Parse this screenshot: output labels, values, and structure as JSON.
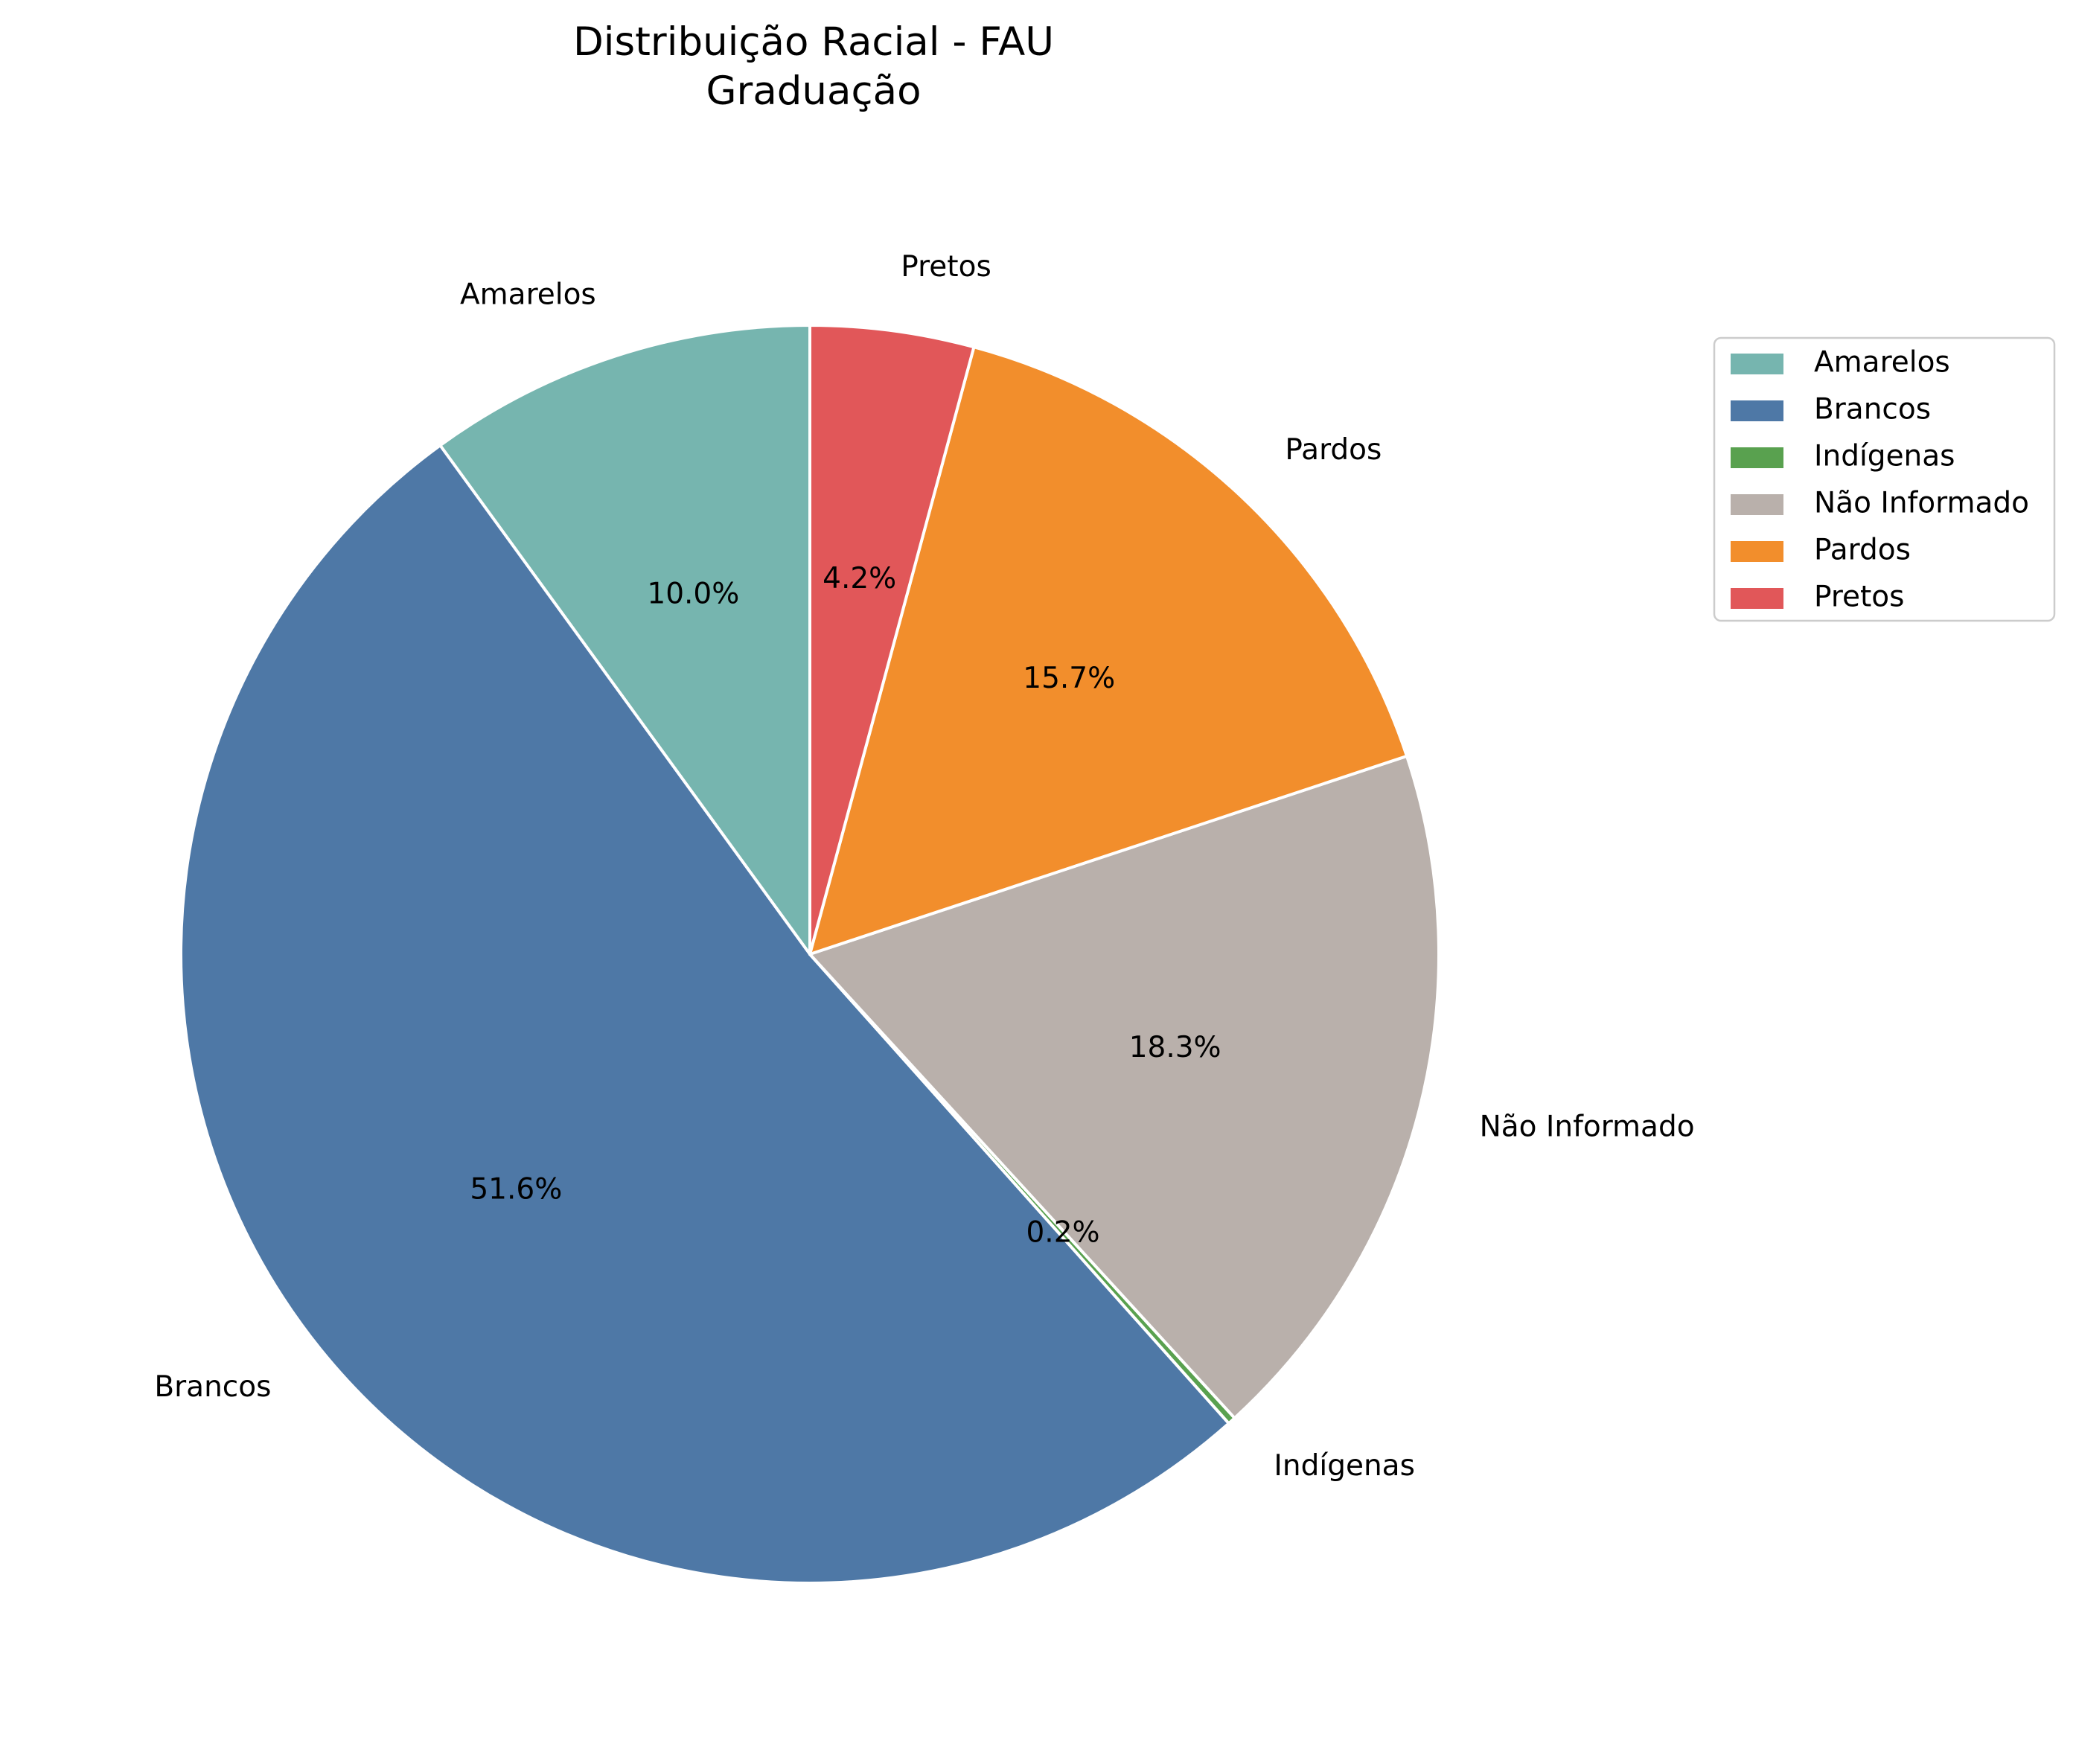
{
  "chart_data": {
    "type": "pie",
    "title": [
      "Distribuição Racial - FAU",
      "Graduação"
    ],
    "categories": [
      "Amarelos",
      "Brancos",
      "Indígenas",
      "Não Informado",
      "Pardos",
      "Pretos"
    ],
    "values": [
      10.0,
      51.6,
      0.2,
      18.3,
      15.7,
      4.2
    ],
    "value_labels": [
      "10.0%",
      "51.6%",
      "0.2%",
      "18.3%",
      "15.7%",
      "4.2%"
    ],
    "colors": [
      "#76b5af",
      "#4e78a6",
      "#59a14f",
      "#b9b0ab",
      "#f28e2c",
      "#e15759"
    ],
    "start_angle_deg": 90,
    "direction": "counterclockwise",
    "legend_placement": "upper-right, outside"
  }
}
